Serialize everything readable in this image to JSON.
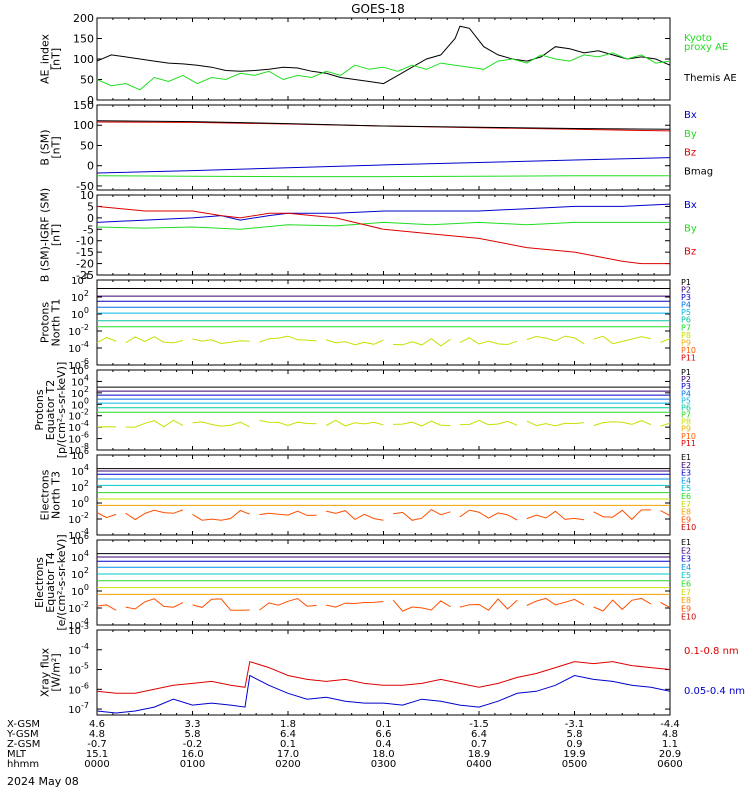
{
  "title": "GOES-18",
  "date_label": "2024 May 08",
  "colors": {
    "black": "#000000",
    "red": "#dd0000",
    "green": "#22dd22",
    "blue": "#0000cc",
    "lightgreen": "#22ee22",
    "p_colors": [
      "#000000",
      "#3a0070",
      "#0000cc",
      "#0070ee",
      "#00b8e8",
      "#00c8a0",
      "#22dd22",
      "#c8e000",
      "#f0b000",
      "#ff6000",
      "#dd0000"
    ],
    "e_colors": [
      "#000000",
      "#3a0070",
      "#0000cc",
      "#0090ee",
      "#00c8c8",
      "#22dd22",
      "#c8e000",
      "#f0a000",
      "#ff5000",
      "#cc0000"
    ]
  },
  "orbit": {
    "rows": [
      {
        "label": "X-GSM",
        "values": [
          "4.6",
          "3.3",
          "1.8",
          "0.1",
          "-1.5",
          "-3.1",
          "-4.4"
        ]
      },
      {
        "label": "Y-GSM",
        "values": [
          "4.8",
          "5.8",
          "6.4",
          "6.6",
          "6.4",
          "5.8",
          "4.8"
        ]
      },
      {
        "label": "Z-GSM",
        "values": [
          "-0.7",
          "-0.2",
          "0.1",
          "0.4",
          "0.7",
          "0.9",
          "1.1"
        ]
      },
      {
        "label": "MLT",
        "values": [
          "15.1",
          "16.0",
          "17.0",
          "18.0",
          "18.9",
          "19.9",
          "20.9"
        ]
      },
      {
        "label": "hhmm",
        "values": [
          "0000",
          "0100",
          "0200",
          "0300",
          "0400",
          "0500",
          "0600"
        ]
      }
    ]
  },
  "chart_data": [
    {
      "type": "line",
      "ylabel": "AE_index\n[nT]",
      "ylim": [
        0,
        200
      ],
      "yticks": [
        "0",
        "50",
        "100",
        "150",
        "200"
      ],
      "xlim": [
        0,
        6
      ],
      "series": [
        {
          "name": "Themis AE",
          "color_key": "black",
          "x": [
            0,
            0.15,
            0.3,
            0.45,
            0.6,
            0.75,
            0.9,
            1.05,
            1.2,
            1.35,
            1.5,
            1.65,
            1.8,
            1.95,
            2.1,
            2.25,
            2.4,
            2.55,
            2.7,
            2.85,
            3.0,
            3.15,
            3.3,
            3.45,
            3.6,
            3.75,
            3.8,
            3.9,
            4.05,
            4.2,
            4.35,
            4.5,
            4.65,
            4.8,
            4.95,
            5.1,
            5.25,
            5.4,
            5.55,
            5.7,
            5.85,
            6.0
          ],
          "y": [
            95,
            110,
            105,
            100,
            95,
            90,
            88,
            85,
            80,
            72,
            70,
            72,
            75,
            80,
            78,
            70,
            65,
            55,
            50,
            45,
            40,
            60,
            80,
            100,
            110,
            150,
            180,
            175,
            130,
            110,
            100,
            95,
            105,
            130,
            125,
            115,
            120,
            110,
            100,
            105,
            100,
            85
          ]
        },
        {
          "name": "Kyoto proxy AE",
          "color_key": "green",
          "x": [
            0,
            0.15,
            0.3,
            0.45,
            0.6,
            0.75,
            0.9,
            1.05,
            1.2,
            1.35,
            1.5,
            1.65,
            1.8,
            1.95,
            2.1,
            2.25,
            2.4,
            2.55,
            2.7,
            2.85,
            3.0,
            3.15,
            3.3,
            3.45,
            3.6,
            3.75,
            3.9,
            4.05,
            4.2,
            4.35,
            4.5,
            4.65,
            4.8,
            4.95,
            5.1,
            5.25,
            5.4,
            5.55,
            5.7,
            5.85,
            6.0
          ],
          "y": [
            50,
            35,
            40,
            25,
            55,
            45,
            60,
            40,
            55,
            50,
            65,
            60,
            70,
            50,
            60,
            55,
            70,
            60,
            85,
            75,
            80,
            70,
            85,
            75,
            90,
            85,
            80,
            75,
            95,
            100,
            90,
            110,
            100,
            95,
            110,
            105,
            115,
            100,
            110,
            90,
            95
          ]
        }
      ],
      "legend": [
        {
          "text": "Kyoto",
          "color_key": "green"
        },
        {
          "text": "proxy AE",
          "color_key": "green"
        },
        {
          "text": "Themis AE",
          "color_key": "black"
        }
      ]
    },
    {
      "type": "line",
      "ylabel": "B (SM)\n[nT]",
      "ylim": [
        -60,
        150
      ],
      "yticks": [
        "-50",
        "0",
        "50",
        "100",
        "150"
      ],
      "xlim": [
        0,
        6
      ],
      "series": [
        {
          "name": "Bx",
          "color_key": "blue",
          "x": [
            0,
            1,
            2,
            3,
            4,
            5,
            6
          ],
          "y": [
            -18,
            -12,
            -5,
            2,
            8,
            14,
            20
          ]
        },
        {
          "name": "By",
          "color_key": "green",
          "x": [
            0,
            1,
            2,
            3,
            4,
            5,
            6
          ],
          "y": [
            -25,
            -26,
            -27,
            -27,
            -26,
            -25,
            -25
          ]
        },
        {
          "name": "Bz",
          "color_key": "red",
          "x": [
            0,
            1,
            2,
            3,
            4,
            5,
            6
          ],
          "y": [
            108,
            107,
            103,
            98,
            94,
            90,
            86
          ]
        },
        {
          "name": "Bmag",
          "color_key": "black",
          "x": [
            0,
            1,
            2,
            3,
            4,
            5,
            6
          ],
          "y": [
            111,
            109,
            104,
            98,
            95,
            92,
            90
          ]
        }
      ],
      "legend": [
        {
          "text": "Bx",
          "color_key": "blue"
        },
        {
          "text": "By",
          "color_key": "green"
        },
        {
          "text": "Bz",
          "color_key": "red"
        },
        {
          "text": "Bmag",
          "color_key": "black"
        }
      ]
    },
    {
      "type": "line",
      "ylabel": "B (SM)-IGRF (SM)\n[nT]",
      "ylim": [
        -25,
        10
      ],
      "yticks": [
        "-25",
        "-20",
        "-15",
        "-10",
        "-5",
        "0",
        "5",
        "10"
      ],
      "xlim": [
        0,
        6
      ],
      "series": [
        {
          "name": "Bx",
          "color_key": "blue",
          "x": [
            0,
            0.5,
            1,
            1.3,
            1.5,
            1.8,
            2,
            2.5,
            3,
            3.5,
            4,
            4.5,
            5,
            5.5,
            6
          ],
          "y": [
            -2,
            -1,
            0,
            1,
            -1,
            1,
            2,
            2,
            3,
            3,
            3,
            4,
            5,
            5,
            6
          ]
        },
        {
          "name": "By",
          "color_key": "green",
          "x": [
            0,
            0.5,
            1,
            1.5,
            2,
            2.5,
            3,
            3.5,
            4,
            4.5,
            5,
            5.5,
            6
          ],
          "y": [
            -4,
            -4.5,
            -4,
            -5,
            -3,
            -3.5,
            -2,
            -3,
            -2,
            -3,
            -2,
            -2,
            -2
          ]
        },
        {
          "name": "Bz",
          "color_key": "red",
          "x": [
            0,
            0.5,
            1,
            1.3,
            1.5,
            1.8,
            2,
            2.5,
            3,
            3.5,
            4,
            4.5,
            5,
            5.5,
            5.7,
            6
          ],
          "y": [
            5,
            3,
            3,
            1,
            0,
            2,
            2,
            0,
            -5,
            -7,
            -9,
            -13,
            -15,
            -19,
            -20,
            -20
          ]
        }
      ],
      "legend": [
        {
          "text": "Bx",
          "color_key": "blue"
        },
        {
          "text": "By",
          "color_key": "green"
        },
        {
          "text": "Bz",
          "color_key": "red"
        }
      ]
    },
    {
      "type": "line",
      "log": true,
      "ylabel": "Protons\nNorth T1",
      "ylim_exp": [
        -6,
        4
      ],
      "ytick_exp": [
        -6,
        -4,
        -2,
        0,
        2,
        4
      ],
      "xlim": [
        0,
        6
      ],
      "level_exp": [
        3.0,
        2.1,
        1.5,
        0.8,
        0.1,
        -0.8,
        -1.5
      ],
      "noisy": {
        "name": "P8",
        "base": -3.2,
        "amp": 0.6
      },
      "legend": [
        "P1",
        "P2",
        "P3",
        "P4",
        "P5",
        "P6",
        "P7",
        "P8",
        "P9",
        "P10",
        "P11"
      ]
    },
    {
      "type": "line",
      "log": true,
      "ylabel": "Protons\nEquator T2\n[p/(cm²-s-sr-keV)]",
      "ylim_exp": [
        -8,
        6
      ],
      "ytick_exp": [
        -8,
        -6,
        -4,
        -2,
        0,
        2,
        4,
        6
      ],
      "xlim": [
        0,
        6
      ],
      "level_exp": [
        3.0,
        2.3,
        1.6,
        0.9,
        0.2,
        -0.6,
        -1.4
      ],
      "noisy": {
        "name": "P8",
        "base": -3.4,
        "amp": 0.6
      },
      "legend": [
        "P1",
        "P2",
        "P3",
        "P4",
        "P5",
        "P6",
        "P7",
        "P8",
        "P9",
        "P10",
        "P11"
      ]
    },
    {
      "type": "line",
      "log": true,
      "ylabel": "Electrons\nNorth T3",
      "ylim_exp": [
        -4,
        6
      ],
      "ytick_exp": [
        -4,
        -2,
        0,
        2,
        4,
        6
      ],
      "xlim": [
        0,
        6
      ],
      "level_exp": [
        4.3,
        4.0,
        3.6,
        3.0,
        2.2,
        1.3,
        0.5,
        -0.3
      ],
      "noisy": {
        "name": "E9",
        "base": -1.5,
        "amp": 0.7
      },
      "legend": [
        "E1",
        "E2",
        "E3",
        "E4",
        "E5",
        "E6",
        "E7",
        "E8",
        "E9",
        "E10"
      ]
    },
    {
      "type": "line",
      "log": true,
      "ylabel": "Electrons\nEquator T4\n[e/(cm²-s-sr-keV)]",
      "ylim_exp": [
        -4,
        6
      ],
      "ytick_exp": [
        -4,
        -2,
        0,
        2,
        4,
        6
      ],
      "xlim": [
        0,
        6
      ],
      "level_exp": [
        4.4,
        4.0,
        3.5,
        2.8,
        2.0,
        1.2,
        0.4,
        -0.4
      ],
      "noisy": {
        "name": "E9",
        "base": -1.6,
        "amp": 0.8
      },
      "legend": [
        "E1",
        "E2",
        "E3",
        "E4",
        "E5",
        "E6",
        "E7",
        "E8",
        "E9",
        "E10"
      ]
    },
    {
      "type": "line",
      "log": true,
      "ylabel": "Xray flux\n[W/m²]",
      "ylim_exp": [
        -7.3,
        -3
      ],
      "ytick_exp": [
        -7,
        -6,
        -5,
        -4,
        -3
      ],
      "xlim": [
        0,
        6
      ],
      "series": [
        {
          "name": "0.1-0.8 nm",
          "color_key": "red",
          "x": [
            0,
            0.2,
            0.4,
            0.6,
            0.8,
            1.0,
            1.2,
            1.4,
            1.55,
            1.6,
            1.8,
            2.0,
            2.2,
            2.4,
            2.6,
            2.8,
            3.0,
            3.2,
            3.4,
            3.6,
            3.8,
            4.0,
            4.2,
            4.4,
            4.6,
            4.8,
            5.0,
            5.2,
            5.4,
            5.6,
            5.8,
            6.0
          ],
          "y": [
            -6.1,
            -6.2,
            -6.2,
            -6.0,
            -5.8,
            -5.7,
            -5.6,
            -5.8,
            -5.9,
            -4.6,
            -4.9,
            -5.3,
            -5.5,
            -5.6,
            -5.5,
            -5.7,
            -5.8,
            -5.8,
            -5.7,
            -5.5,
            -5.7,
            -5.9,
            -5.7,
            -5.4,
            -5.2,
            -4.9,
            -4.6,
            -4.7,
            -4.6,
            -4.8,
            -4.9,
            -5.0
          ]
        },
        {
          "name": "0.05-0.4 nm",
          "color_key": "blue",
          "x": [
            0,
            0.2,
            0.4,
            0.6,
            0.8,
            1.0,
            1.2,
            1.4,
            1.55,
            1.6,
            1.8,
            2.0,
            2.2,
            2.4,
            2.6,
            2.8,
            3.0,
            3.2,
            3.4,
            3.6,
            3.8,
            4.0,
            4.2,
            4.4,
            4.6,
            4.8,
            5.0,
            5.2,
            5.4,
            5.6,
            5.8,
            6.0
          ],
          "y": [
            -7.1,
            -7.2,
            -7.1,
            -6.9,
            -6.5,
            -6.8,
            -6.7,
            -6.8,
            -6.9,
            -5.3,
            -5.8,
            -6.2,
            -6.5,
            -6.4,
            -6.6,
            -6.7,
            -6.7,
            -6.8,
            -6.5,
            -6.6,
            -6.8,
            -6.9,
            -6.6,
            -6.2,
            -6.1,
            -5.8,
            -5.3,
            -5.5,
            -5.6,
            -5.8,
            -5.9,
            -6.1
          ]
        }
      ],
      "legend": [
        {
          "text": "0.1-0.8 nm",
          "color_key": "red"
        },
        {
          "text": "0.05-0.4 nm",
          "color_key": "blue"
        }
      ]
    }
  ]
}
